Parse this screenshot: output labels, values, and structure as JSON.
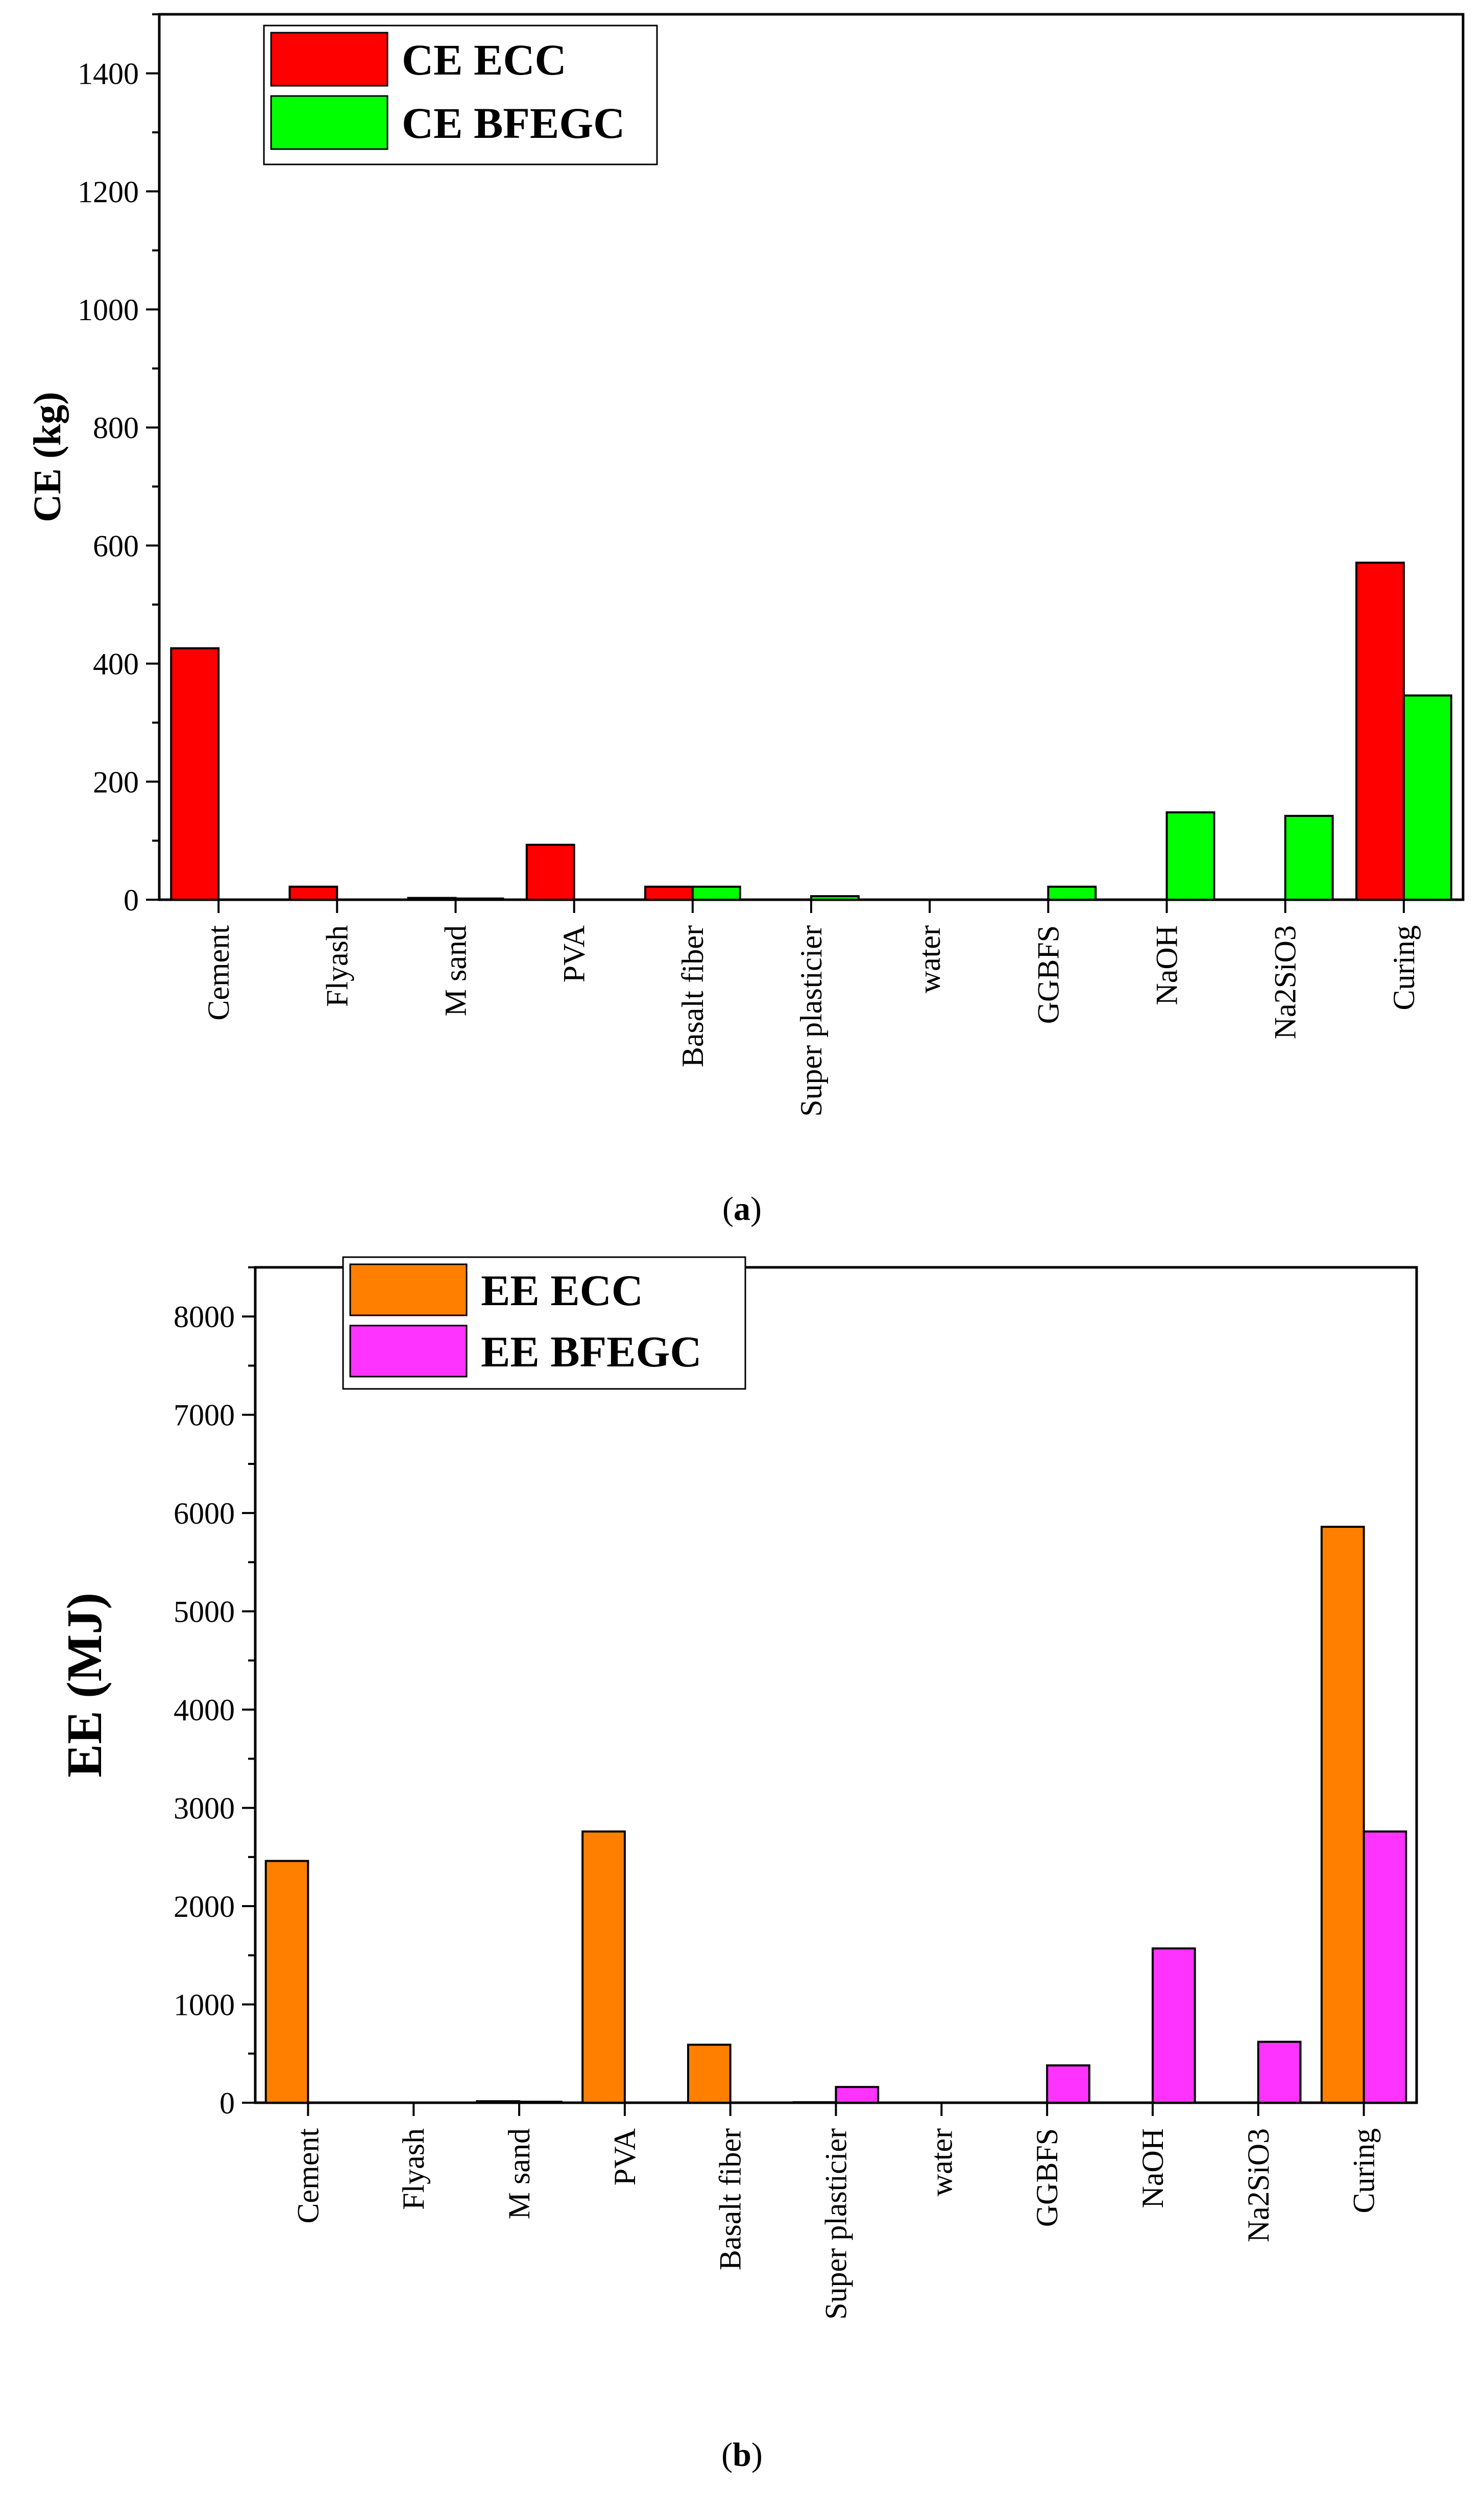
{
  "chart_data": [
    {
      "type": "bar",
      "panel": "a",
      "caption_letter": "a",
      "title": "",
      "xlabel": "",
      "ylabel": "CE (kg)",
      "ylim": [
        0,
        1500
      ],
      "yticks": [
        0,
        200,
        400,
        600,
        800,
        1000,
        1200,
        1400
      ],
      "categories": [
        "Cement",
        "Flyash",
        "M sand",
        "PVA",
        "Basalt fiber",
        "Super plasticier",
        "water",
        "GGBFS",
        "NaOH",
        "Na2SiO3",
        "Curing"
      ],
      "series": [
        {
          "name": "CE ECC",
          "color": "#ff0000",
          "values": [
            426,
            22,
            3,
            93,
            22,
            0,
            0,
            0,
            0,
            0,
            571
          ]
        },
        {
          "name": "CE BFEGC",
          "color": "#00ff00",
          "values": [
            0,
            0,
            2,
            0,
            22,
            6,
            0,
            22,
            148,
            142,
            346
          ]
        }
      ],
      "legend_position": "top-left"
    },
    {
      "type": "bar",
      "panel": "b",
      "caption_letter": "b",
      "title": "",
      "xlabel": "",
      "ylabel": "EE (MJ)",
      "ylim": [
        0,
        8500
      ],
      "yticks": [
        0,
        1000,
        2000,
        3000,
        4000,
        5000,
        6000,
        7000,
        8000
      ],
      "categories": [
        "Cement",
        "Flyash",
        "M sand",
        "PVA",
        "Basalt fiber",
        "Super plasticier",
        "water",
        "GGBFS",
        "NaOH",
        "Na2SiO3",
        "Curing"
      ],
      "series": [
        {
          "name": "EE ECC",
          "color": "#ff8000",
          "values": [
            2460,
            0,
            15,
            2760,
            590,
            5,
            0,
            0,
            0,
            0,
            5860
          ]
        },
        {
          "name": "EE BFEGC",
          "color": "#ff33ff",
          "values": [
            0,
            0,
            10,
            0,
            0,
            160,
            0,
            380,
            1570,
            620,
            2760
          ]
        }
      ],
      "legend_position": "top-left"
    }
  ]
}
